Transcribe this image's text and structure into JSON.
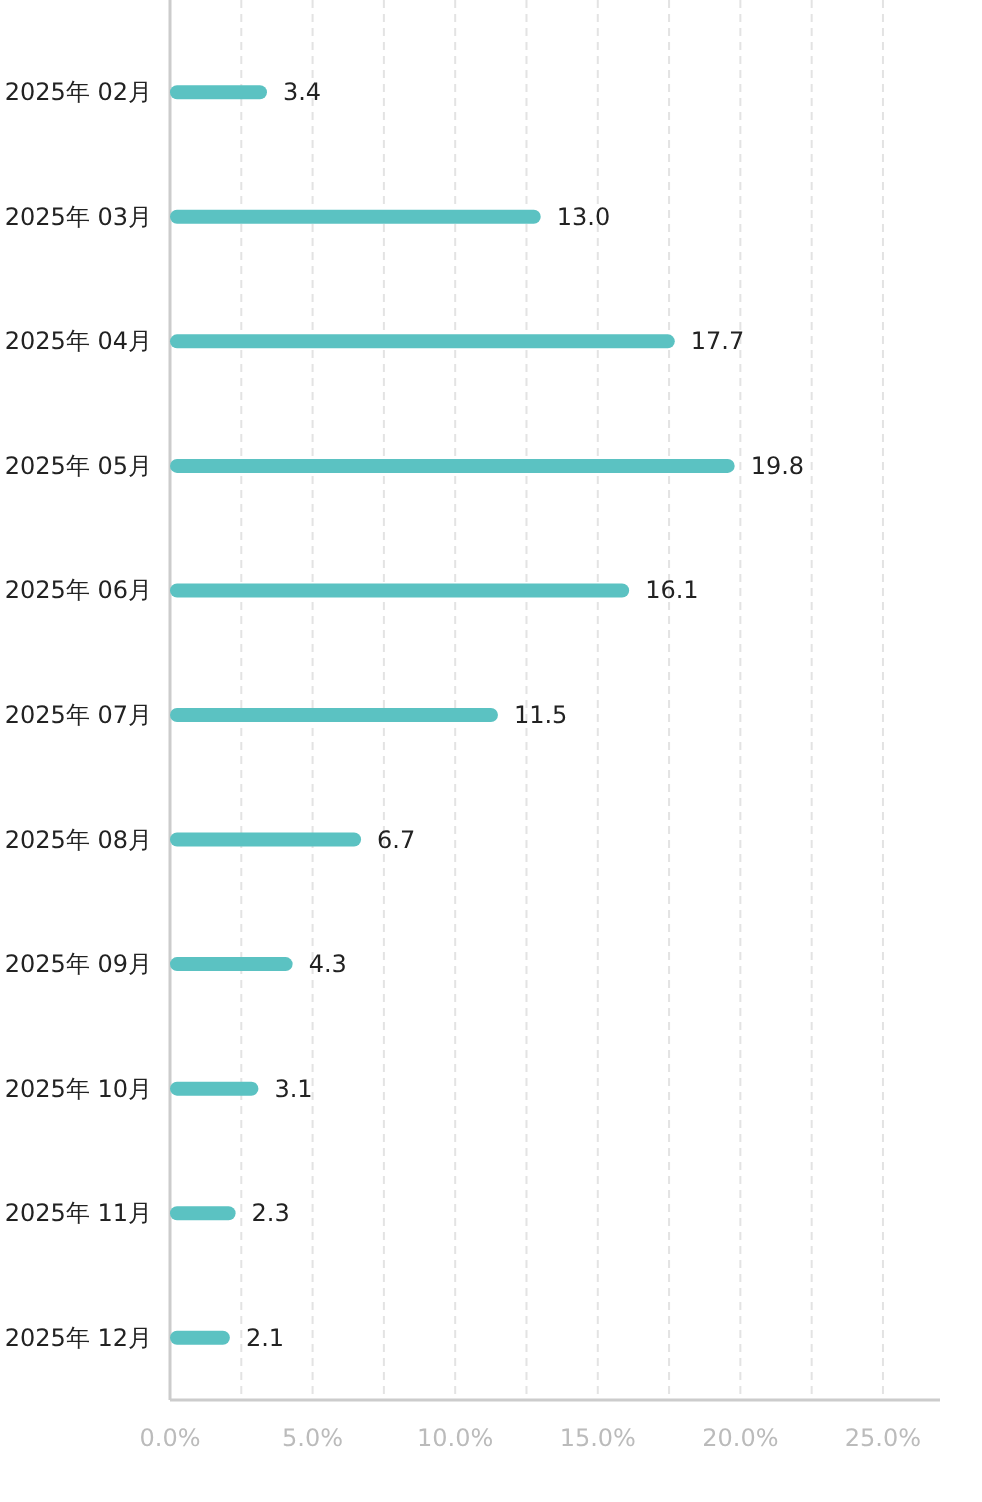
{
  "chart_data": {
    "type": "bar",
    "orientation": "horizontal",
    "categories": [
      "2025年 02月",
      "2025年 03月",
      "2025年 04月",
      "2025年 05月",
      "2025年 06月",
      "2025年 07月",
      "2025年 08月",
      "2025年 09月",
      "2025年 10月",
      "2025年 11月",
      "2025年 12月"
    ],
    "values": [
      3.4,
      13.0,
      17.7,
      19.8,
      16.1,
      11.5,
      6.7,
      4.3,
      3.1,
      2.3,
      2.1
    ],
    "value_labels": [
      "3.4",
      "13.0",
      "17.7",
      "19.8",
      "16.1",
      "11.5",
      "6.7",
      "4.3",
      "3.1",
      "2.3",
      "2.1"
    ],
    "color": "#5bc2c2",
    "xlim": [
      0,
      27
    ],
    "xticks": [
      {
        "value": 0,
        "label": "0.0%"
      },
      {
        "value": 2.5,
        "label": null
      },
      {
        "value": 5,
        "label": "5.0%"
      },
      {
        "value": 7.5,
        "label": null
      },
      {
        "value": 10,
        "label": "10.0%"
      },
      {
        "value": 12.5,
        "label": null
      },
      {
        "value": 15,
        "label": "15.0%"
      },
      {
        "value": 17.5,
        "label": null
      },
      {
        "value": 20,
        "label": "20.0%"
      },
      {
        "value": 22.5,
        "label": null
      },
      {
        "value": 25,
        "label": "25.0%"
      }
    ],
    "grid": "x"
  }
}
